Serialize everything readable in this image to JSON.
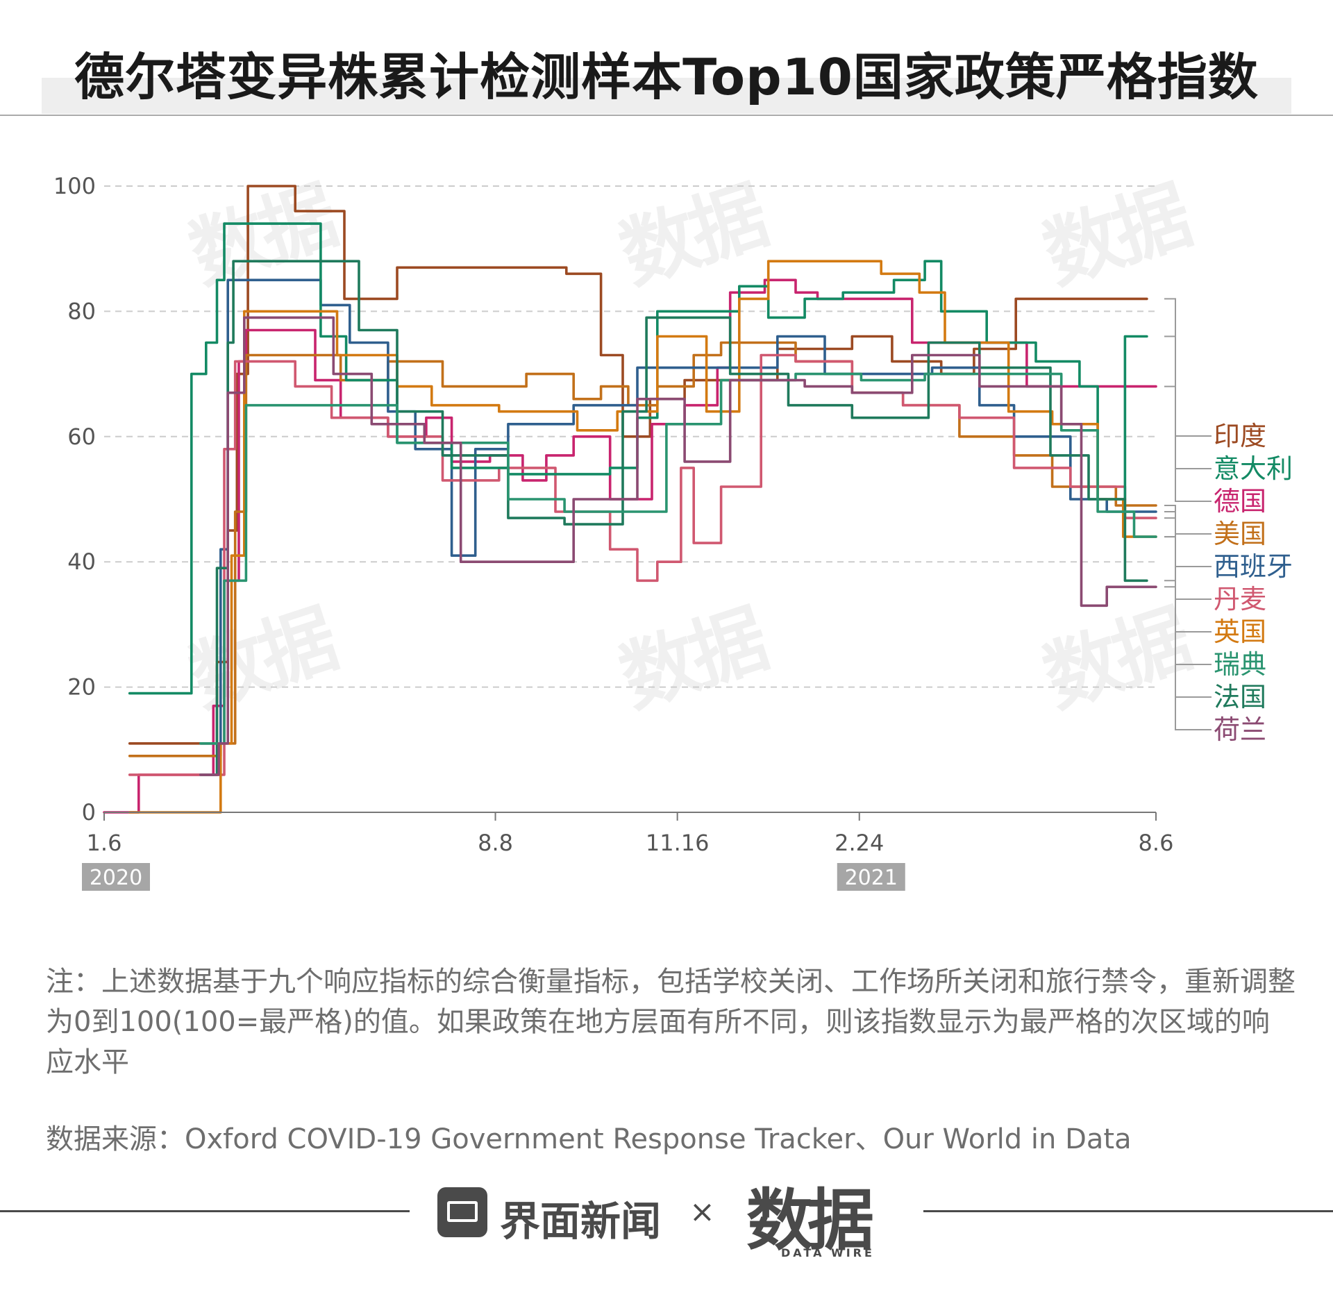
{
  "page": {
    "title": "德尔塔变异株累计检测样本Top10国家政策严格指数",
    "note": "注：上述数据基于九个响应指标的综合衡量指标，包括学校关闭、工作场所关闭和旅行禁令，重新调整为0到100(100=最严格)的值。如果政策在地方层面有所不同，则该指数显示为最严格的次区域的响应水平",
    "source": "数据来源：Oxford COVID-19 Government Response Tracker、Our World in Data",
    "brand_name": "界面新闻",
    "brand_separator": "×",
    "brand_logo": "数据",
    "brand_logo_sub": "DATA WIRE",
    "watermark_text": "数据"
  },
  "chart_data": {
    "type": "line",
    "title": "德尔塔变异株累计检测样本Top10国家政策严格指数",
    "xlabel": "",
    "ylabel": "",
    "x_range": [
      "2020-01-06",
      "2021-08-06"
    ],
    "ylim": [
      0,
      100
    ],
    "yticks": [
      0,
      20,
      40,
      60,
      80,
      100
    ],
    "xticks": [
      {
        "date": "2020-01-06",
        "label": "1.6"
      },
      {
        "date": "2020-08-08",
        "label": "8.8"
      },
      {
        "date": "2020-11-16",
        "label": "11.16"
      },
      {
        "date": "2021-02-24",
        "label": "2.24"
      },
      {
        "date": "2021-08-06",
        "label": "8.6"
      }
    ],
    "year_badges": [
      {
        "date": "2020-01-06",
        "label": "2020"
      },
      {
        "date": "2021-02-24",
        "label": "2021"
      }
    ],
    "grid": true,
    "legend": "right, end-of-line labels",
    "series": [
      {
        "name": "印度",
        "color": "#9c4a22",
        "end_value": 82,
        "points": [
          [
            "2020-01-20",
            11
          ],
          [
            "2020-03-05",
            11
          ],
          [
            "2020-03-08",
            24
          ],
          [
            "2020-03-14",
            45
          ],
          [
            "2020-03-19",
            70
          ],
          [
            "2020-03-25",
            100
          ],
          [
            "2020-04-12",
            100
          ],
          [
            "2020-04-20",
            96
          ],
          [
            "2020-05-06",
            96
          ],
          [
            "2020-05-17",
            82
          ],
          [
            "2020-06-01",
            82
          ],
          [
            "2020-06-15",
            87
          ],
          [
            "2020-08-05",
            87
          ],
          [
            "2020-09-16",
            86
          ],
          [
            "2020-10-05",
            73
          ],
          [
            "2020-10-17",
            60
          ],
          [
            "2020-11-01",
            66
          ],
          [
            "2020-11-20",
            69
          ],
          [
            "2021-01-10",
            74
          ],
          [
            "2021-02-20",
            76
          ],
          [
            "2021-03-14",
            72
          ],
          [
            "2021-04-10",
            70
          ],
          [
            "2021-04-28",
            74
          ],
          [
            "2021-05-21",
            82
          ],
          [
            "2021-08-01",
            82
          ]
        ]
      },
      {
        "name": "德国",
        "color": "#c8246e",
        "end_value": 68,
        "points": [
          [
            "2020-01-06",
            0
          ],
          [
            "2020-01-20",
            0
          ],
          [
            "2020-01-25",
            6
          ],
          [
            "2020-02-28",
            6
          ],
          [
            "2020-03-06",
            17
          ],
          [
            "2020-03-12",
            37
          ],
          [
            "2020-03-20",
            72
          ],
          [
            "2020-03-24",
            77
          ],
          [
            "2020-04-20",
            77
          ],
          [
            "2020-05-01",
            69
          ],
          [
            "2020-05-15",
            63
          ],
          [
            "2020-06-10",
            60
          ],
          [
            "2020-07-01",
            63
          ],
          [
            "2020-07-15",
            56
          ],
          [
            "2020-08-05",
            57
          ],
          [
            "2020-08-23",
            53
          ],
          [
            "2020-09-05",
            57
          ],
          [
            "2020-09-20",
            60
          ],
          [
            "2020-10-10",
            50
          ],
          [
            "2020-11-02",
            62
          ],
          [
            "2020-11-20",
            65
          ],
          [
            "2020-12-08",
            71
          ],
          [
            "2020-12-15",
            83
          ],
          [
            "2021-01-03",
            85
          ],
          [
            "2021-01-20",
            83
          ],
          [
            "2021-02-01",
            82
          ],
          [
            "2021-03-05",
            82
          ],
          [
            "2021-03-25",
            75
          ],
          [
            "2021-05-01",
            75
          ],
          [
            "2021-05-27",
            68
          ],
          [
            "2021-08-06",
            68
          ]
        ]
      },
      {
        "name": "美国",
        "color": "#c2701a",
        "end_value": 49,
        "points": [
          [
            "2020-01-20",
            9
          ],
          [
            "2020-03-10",
            11
          ],
          [
            "2020-03-18",
            48
          ],
          [
            "2020-03-24",
            73
          ],
          [
            "2020-04-15",
            73
          ],
          [
            "2020-05-15",
            69
          ],
          [
            "2020-06-10",
            72
          ],
          [
            "2020-07-10",
            68
          ],
          [
            "2020-08-25",
            70
          ],
          [
            "2020-09-20",
            66
          ],
          [
            "2020-10-05",
            68
          ],
          [
            "2020-10-20",
            65
          ],
          [
            "2020-11-05",
            68
          ],
          [
            "2020-11-25",
            73
          ],
          [
            "2020-12-10",
            75
          ],
          [
            "2021-01-20",
            72
          ],
          [
            "2021-02-20",
            67
          ],
          [
            "2021-03-20",
            65
          ],
          [
            "2021-04-20",
            60
          ],
          [
            "2021-05-20",
            57
          ],
          [
            "2021-06-10",
            52
          ],
          [
            "2021-07-05",
            52
          ],
          [
            "2021-07-15",
            49
          ],
          [
            "2021-08-06",
            49
          ]
        ]
      },
      {
        "name": "西班牙",
        "color": "#2f5f8e",
        "end_value": 48,
        "points": [
          [
            "2020-02-28",
            11
          ],
          [
            "2020-03-10",
            42
          ],
          [
            "2020-03-14",
            85
          ],
          [
            "2020-04-20",
            85
          ],
          [
            "2020-05-04",
            81
          ],
          [
            "2020-05-20",
            75
          ],
          [
            "2020-06-10",
            64
          ],
          [
            "2020-06-25",
            58
          ],
          [
            "2020-07-15",
            41
          ],
          [
            "2020-07-28",
            58
          ],
          [
            "2020-08-15",
            62
          ],
          [
            "2020-09-20",
            65
          ],
          [
            "2020-10-25",
            71
          ],
          [
            "2020-11-16",
            71
          ],
          [
            "2020-12-10",
            71
          ],
          [
            "2021-01-10",
            76
          ],
          [
            "2021-02-05",
            70
          ],
          [
            "2021-03-10",
            70
          ],
          [
            "2021-04-05",
            71
          ],
          [
            "2021-05-01",
            65
          ],
          [
            "2021-05-20",
            60
          ],
          [
            "2021-06-20",
            50
          ],
          [
            "2021-07-10",
            48
          ],
          [
            "2021-08-06",
            48
          ]
        ]
      },
      {
        "name": "丹麦",
        "color": "#d05870",
        "end_value": 47,
        "points": [
          [
            "2020-01-20",
            6
          ],
          [
            "2020-03-05",
            6
          ],
          [
            "2020-03-12",
            58
          ],
          [
            "2020-03-18",
            72
          ],
          [
            "2020-04-20",
            68
          ],
          [
            "2020-05-10",
            63
          ],
          [
            "2020-06-10",
            60
          ],
          [
            "2020-07-10",
            53
          ],
          [
            "2020-08-10",
            55
          ],
          [
            "2020-09-10",
            48
          ],
          [
            "2020-10-10",
            42
          ],
          [
            "2020-10-25",
            37
          ],
          [
            "2020-11-05",
            40
          ],
          [
            "2020-11-18",
            55
          ],
          [
            "2020-11-25",
            43
          ],
          [
            "2020-12-10",
            52
          ],
          [
            "2021-01-01",
            73
          ],
          [
            "2021-01-20",
            72
          ],
          [
            "2021-02-20",
            67
          ],
          [
            "2021-03-20",
            65
          ],
          [
            "2021-04-20",
            63
          ],
          [
            "2021-05-20",
            55
          ],
          [
            "2021-06-20",
            52
          ],
          [
            "2021-07-20",
            47
          ],
          [
            "2021-08-06",
            47
          ]
        ]
      },
      {
        "name": "意大利",
        "color": "#138a64",
        "end_value": 76,
        "points": [
          [
            "2020-01-20",
            19
          ],
          [
            "2020-02-21",
            19
          ],
          [
            "2020-02-23",
            70
          ],
          [
            "2020-03-02",
            75
          ],
          [
            "2020-03-08",
            85
          ],
          [
            "2020-03-12",
            94
          ],
          [
            "2020-04-12",
            94
          ],
          [
            "2020-05-04",
            76
          ],
          [
            "2020-05-18",
            69
          ],
          [
            "2020-06-15",
            59
          ],
          [
            "2020-07-15",
            55
          ],
          [
            "2020-08-15",
            54
          ],
          [
            "2020-10-10",
            55
          ],
          [
            "2020-10-25",
            63
          ],
          [
            "2020-11-05",
            80
          ],
          [
            "2020-12-05",
            80
          ],
          [
            "2020-12-20",
            84
          ],
          [
            "2021-01-05",
            79
          ],
          [
            "2021-01-25",
            82
          ],
          [
            "2021-02-15",
            83
          ],
          [
            "2021-03-15",
            85
          ],
          [
            "2021-04-01",
            88
          ],
          [
            "2021-04-10",
            80
          ],
          [
            "2021-05-05",
            75
          ],
          [
            "2021-06-01",
            72
          ],
          [
            "2021-06-25",
            68
          ],
          [
            "2021-07-05",
            50
          ],
          [
            "2021-07-20",
            76
          ],
          [
            "2021-08-01",
            76
          ]
        ]
      },
      {
        "name": "英国",
        "color": "#d37a12",
        "end_value": 44,
        "points": [
          [
            "2020-01-20",
            0
          ],
          [
            "2020-03-10",
            11
          ],
          [
            "2020-03-16",
            41
          ],
          [
            "2020-03-23",
            80
          ],
          [
            "2020-04-20",
            80
          ],
          [
            "2020-05-13",
            73
          ],
          [
            "2020-06-15",
            68
          ],
          [
            "2020-07-04",
            65
          ],
          [
            "2020-08-10",
            64
          ],
          [
            "2020-09-22",
            61
          ],
          [
            "2020-10-14",
            64
          ],
          [
            "2020-11-05",
            76
          ],
          [
            "2020-12-02",
            64
          ],
          [
            "2020-12-20",
            82
          ],
          [
            "2021-01-05",
            88
          ],
          [
            "2021-02-05",
            88
          ],
          [
            "2021-03-08",
            86
          ],
          [
            "2021-03-29",
            83
          ],
          [
            "2021-04-12",
            75
          ],
          [
            "2021-05-17",
            64
          ],
          [
            "2021-06-10",
            62
          ],
          [
            "2021-07-05",
            50
          ],
          [
            "2021-07-19",
            44
          ],
          [
            "2021-08-06",
            44
          ]
        ]
      },
      {
        "name": "法国",
        "color": "#1f7a5c",
        "end_value": 37,
        "points": [
          [
            "2020-02-28",
            6
          ],
          [
            "2020-03-08",
            39
          ],
          [
            "2020-03-14",
            75
          ],
          [
            "2020-03-17",
            88
          ],
          [
            "2020-05-11",
            88
          ],
          [
            "2020-05-25",
            77
          ],
          [
            "2020-06-15",
            64
          ],
          [
            "2020-07-10",
            57
          ],
          [
            "2020-08-15",
            47
          ],
          [
            "2020-09-15",
            46
          ],
          [
            "2020-10-17",
            64
          ],
          [
            "2020-10-30",
            79
          ],
          [
            "2020-12-15",
            70
          ],
          [
            "2021-01-16",
            65
          ],
          [
            "2021-02-20",
            63
          ],
          [
            "2021-04-03",
            75
          ],
          [
            "2021-05-01",
            71
          ],
          [
            "2021-06-09",
            57
          ],
          [
            "2021-06-30",
            50
          ],
          [
            "2021-07-20",
            37
          ],
          [
            "2021-08-01",
            37
          ]
        ]
      },
      {
        "name": "瑞典",
        "color": "#2a9470",
        "end_value": 44,
        "points": [
          [
            "2020-02-28",
            11
          ],
          [
            "2020-03-12",
            37
          ],
          [
            "2020-03-24",
            65
          ],
          [
            "2020-05-20",
            65
          ],
          [
            "2020-06-15",
            59
          ],
          [
            "2020-08-15",
            50
          ],
          [
            "2020-09-15",
            48
          ],
          [
            "2020-11-10",
            62
          ],
          [
            "2020-12-10",
            69
          ],
          [
            "2021-01-20",
            70
          ],
          [
            "2021-02-25",
            69
          ],
          [
            "2021-04-01",
            70
          ],
          [
            "2021-05-15",
            70
          ],
          [
            "2021-06-15",
            61
          ],
          [
            "2021-07-05",
            48
          ],
          [
            "2021-07-25",
            44
          ],
          [
            "2021-08-06",
            44
          ]
        ]
      },
      {
        "name": "荷兰",
        "color": "#8b4a72",
        "end_value": 36,
        "points": [
          [
            "2020-02-28",
            6
          ],
          [
            "2020-03-09",
            11
          ],
          [
            "2020-03-14",
            67
          ],
          [
            "2020-03-23",
            79
          ],
          [
            "2020-05-11",
            70
          ],
          [
            "2020-06-01",
            62
          ],
          [
            "2020-06-30",
            59
          ],
          [
            "2020-07-20",
            40
          ],
          [
            "2020-08-20",
            40
          ],
          [
            "2020-09-20",
            50
          ],
          [
            "2020-10-14",
            50
          ],
          [
            "2020-10-25",
            66
          ],
          [
            "2020-11-20",
            56
          ],
          [
            "2020-12-15",
            69
          ],
          [
            "2021-01-25",
            68
          ],
          [
            "2021-02-20",
            67
          ],
          [
            "2021-03-25",
            73
          ],
          [
            "2021-05-01",
            68
          ],
          [
            "2021-06-15",
            62
          ],
          [
            "2021-06-26",
            33
          ],
          [
            "2021-07-10",
            36
          ],
          [
            "2021-08-06",
            36
          ]
        ]
      }
    ]
  }
}
